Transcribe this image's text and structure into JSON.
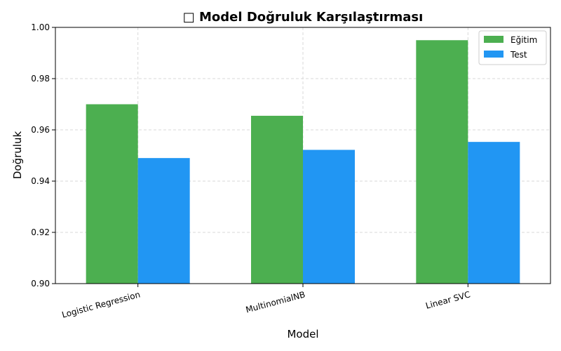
{
  "chart_data": {
    "type": "bar",
    "title": "□ Model Doğruluk Karşılaştırması",
    "xlabel": "Model",
    "ylabel": "Doğruluk",
    "categories": [
      "Logistic Regression",
      "MultinomialNB",
      "Linear SVC"
    ],
    "series": [
      {
        "name": "Eğitim",
        "color": "#4caf50",
        "values": [
          0.97,
          0.9655,
          0.995
        ]
      },
      {
        "name": "Test",
        "color": "#2196f3",
        "values": [
          0.949,
          0.9522,
          0.9553
        ]
      }
    ],
    "ylim": [
      0.9,
      1.0
    ],
    "yticks": [
      "0.90",
      "0.92",
      "0.94",
      "0.96",
      "0.98",
      "1.00"
    ],
    "grid": true,
    "legend_position": "top-right"
  }
}
